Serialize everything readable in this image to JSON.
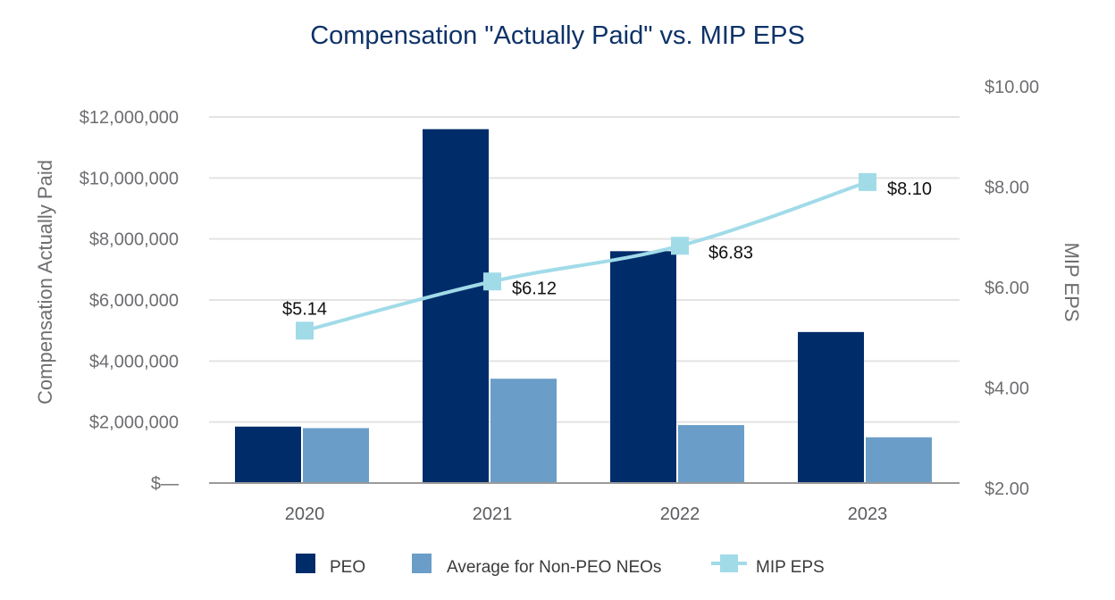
{
  "chart_data": {
    "type": "bar+line",
    "title": "Compensation \"Actually Paid\" vs. MIP EPS",
    "categories": [
      "2020",
      "2021",
      "2022",
      "2023"
    ],
    "series": [
      {
        "name": "PEO",
        "type": "bar",
        "axis": "left",
        "color": "#002d6a",
        "values": [
          1850000,
          11600000,
          7600000,
          4950000
        ]
      },
      {
        "name": "Average for Non-PEO NEOs",
        "type": "bar",
        "axis": "left",
        "color": "#6a9ec8",
        "values": [
          1800000,
          3420000,
          1900000,
          1500000
        ]
      },
      {
        "name": "MIP EPS",
        "type": "line",
        "axis": "right",
        "color": "#a1dbe8",
        "values": [
          5.14,
          6.12,
          6.83,
          8.1
        ],
        "labels": [
          "$5.14",
          "$6.12",
          "$6.83",
          "$8.10"
        ]
      }
    ],
    "ylabel": "Compensation Actually Paid",
    "y2label": "MIP EPS",
    "ylim": [
      0,
      12000000
    ],
    "y2lim": [
      2,
      10
    ],
    "yticks": [
      0,
      2000000,
      4000000,
      6000000,
      8000000,
      10000000,
      12000000
    ],
    "ytick_labels": [
      "$—",
      "$2,000,000",
      "$4,000,000",
      "$6,000,000",
      "$8,000,000",
      "$10,000,000",
      "$12,000,000"
    ],
    "y2ticks": [
      2,
      4,
      6,
      8,
      10
    ],
    "y2tick_labels": [
      "$2.00",
      "$4.00",
      "$6.00",
      "$8.00",
      "$10.00"
    ],
    "grid": true,
    "legend_position": "bottom-center"
  }
}
